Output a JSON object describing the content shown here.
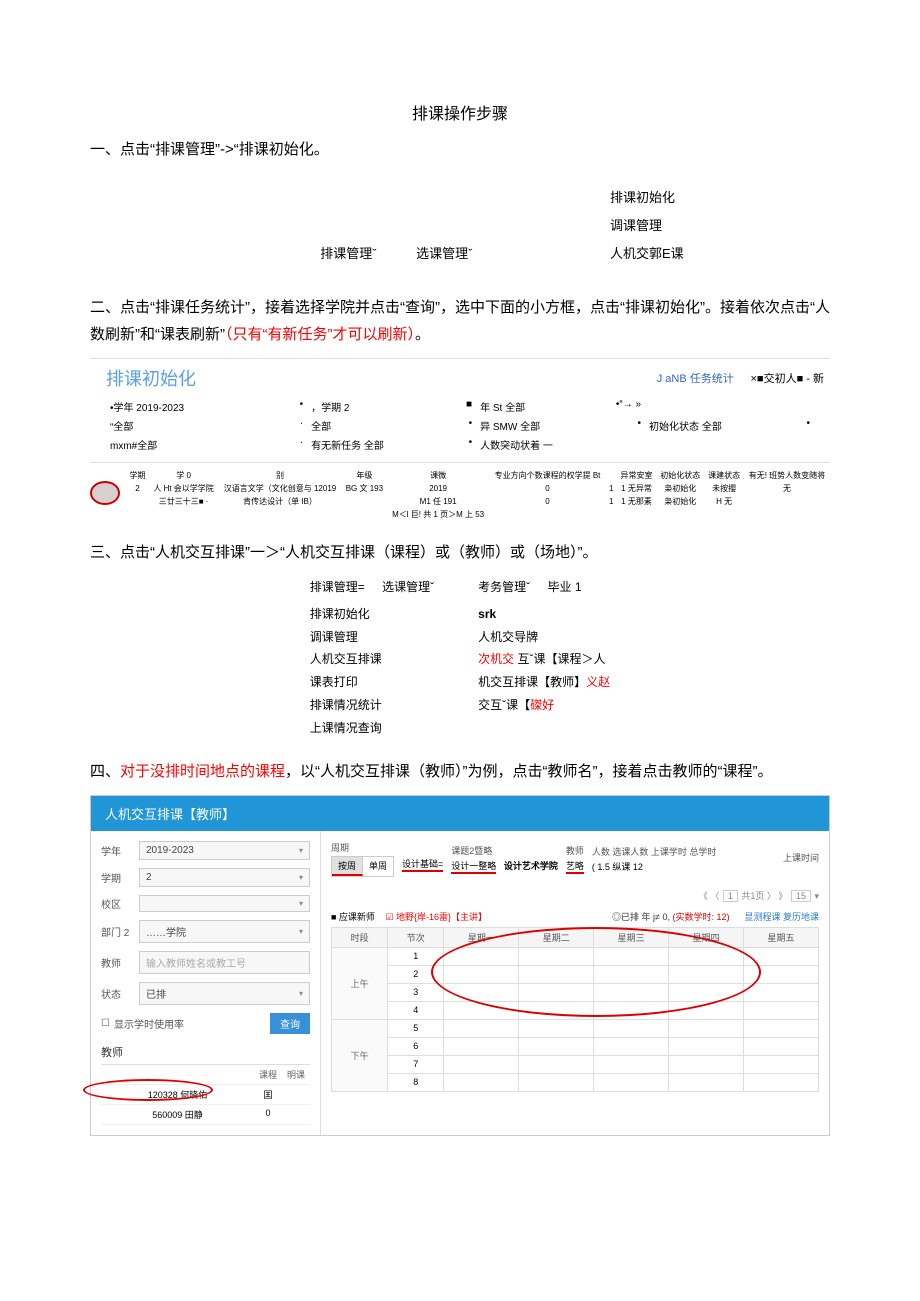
{
  "title": "排课操作步骤",
  "step1": "一、点击“排课管理”->“排课初始化。",
  "menu1": {
    "top1": "排课管理ˇ",
    "top2": "选课管理ˇ",
    "i1": "排课初始化",
    "i2": "调课管理",
    "i3": "人机交郭Ε课"
  },
  "step2a": "二、点击“排课任务统计”，接着选择学院并点击“查询”，选中下面的小方框，点击“排课初始化”。接着依次点击“人数刷新”和“课表刷新”",
  "step2b": "（只有“有新任务”才可以刷新）",
  "step2c": "。",
  "panel2": {
    "title": "排课初始化",
    "tab1": "J aNB 任务统计",
    "tab2": "×■交初人■ - 新",
    "r1c1l": "•学年 2019-2023",
    "r1c1r": "•",
    "r1c2l": "，学期 2",
    "r1c2r": "■",
    "r1c3l": "年 St 全部",
    "r1c3r": "•“→ »",
    "r1c4l": "",
    "r1c4r": "",
    "r2c1l": "“全部",
    "r2c1r": "·",
    "r2c2l": "全部",
    "r2c2r": "•",
    "r2c3l": "异 SMW 全部",
    "r2c3r": "•",
    "r2c4l": "初始化状态 全部",
    "r2c4r": "•",
    "r3c1l": "mxm#全部",
    "r3c1r": "·",
    "r3c2l": "有无新任务 全部",
    "r3c2r": "•",
    "r3c3l": "人数突动状着  一",
    "r3c3r": "",
    "r3c4l": "",
    "r3c4r": ""
  },
  "table1": {
    "headers": [
      "学期",
      "学 0",
      "别",
      "年级",
      "课微",
      "专业方向个数课程的权学提 Bt",
      "",
      "异常安室",
      "初始化状态",
      "课建状态",
      "有无! 班势人数变随将"
    ],
    "row1": [
      "2",
      "人 Ht 会以学学院",
      "汉语言文学（文化创意与 12019",
      "BG 文 193",
      "2019",
      "0",
      "1",
      "1 无异常",
      "枭初始化",
      "未按撄",
      "无"
    ],
    "row2": [
      "",
      "三廿三十三■ ·",
      "肯传达设计（单 IB）",
      "",
      "M1 任 191",
      "0",
      "1",
      "1 无那素",
      "枭初始化",
      "H 无",
      ""
    ],
    "row3": [
      "",
      "",
      "",
      "",
      "M＜l 巨! 共 1 页＞M 上 53",
      "",
      "",
      "",
      "",
      "",
      ""
    ]
  },
  "step3": "三、点击“人机交互排课”一＞“人机交互排课（课程）或（教师）或（场地）”。",
  "menu3": {
    "top": {
      "a": "排课管理=",
      "b": "选课管理ˇ",
      "c": "考务管理ˇ",
      "d": "毕业 1"
    },
    "l1": "排课初始化",
    "r1": "srk",
    "l2": "调课管理",
    "r2": "",
    "l3": "人机交互排课",
    "r3": "人机交导牌",
    "l4": "课表打印",
    "r4a": "次机交",
    "r4b": " 互ˇ课【课程＞人",
    "l5": "排课情况统计",
    "r5a": "机交互排课【教师】",
    "r5b": "义赵",
    "l6": "上课情况查询",
    "r6a": "交互ˇ课【",
    "r6b": "磔好"
  },
  "step4a": "四、",
  "step4b": "对于没排时间地点的课程",
  "step4c": "，以“人机交互排课（教师）”为例，点击“教师名”，接着点击教师的“课程”。",
  "panel4": {
    "header": "人机交互排课【教师】",
    "form": {
      "year_l": "学年",
      "year_v": "2019-2023",
      "term_l": "学期",
      "term_v": "2",
      "campus_l": "校区",
      "campus_v": "",
      "dept_l": "部门 2",
      "dept_v": "……学院",
      "teacher_l": "教师",
      "teacher_ph": "输入教师姓名或教工号",
      "status_l": "状态",
      "status_v": "已排",
      "checkbox": "显示学时使用率",
      "query": "查询"
    },
    "teacher_title": "教师",
    "teacher_head": {
      "a": "",
      "b": "课程",
      "c": "明课"
    },
    "teachers": [
      {
        "name": "120328 何晓佑",
        "a": "囯",
        "b": ""
      },
      {
        "name": "560009 田静",
        "a": "0",
        "b": ""
      }
    ],
    "right_top": {
      "c1h": "周期",
      "c1a": "按周",
      "c1b": "单周",
      "c2h": "",
      "c2a": "设计基础=",
      "c2b": "",
      "c3h": "课题2暨略",
      "c3a": "设计一整略",
      "c3b": "设计艺术学院",
      "c4h": "教师",
      "c4a": "艺略",
      "c5h": "人数 选课人数 上课学时 总学时",
      "c5a": "( 1.5 纵课    12",
      "c6h": "上课时间",
      "c6a": ""
    },
    "pager": {
      "a": "《 〈",
      "b": "1",
      "c": "共1页 〉 》",
      "d": "15",
      "e": "▾"
    },
    "sched_top": {
      "left1": "■ 应课新师",
      "left2": "☑ 地野{岸-16雷}【主讲】",
      "mid": "◎已排 年 j≠ 0, (实数学时: 12)",
      "right": "显测程课 复历地课"
    },
    "sched": {
      "h1": "时段",
      "h2": "节次",
      "d1": "星期一",
      "d2": "星期二",
      "d3": "星期三",
      "d4": "星期四",
      "d5": "星期五",
      "am": "上午",
      "pm": "下午",
      "p1": "1",
      "p2": "2",
      "p3": "3",
      "p4": "4",
      "p5": "5",
      "p6": "6",
      "p7": "7",
      "p8": "8"
    }
  }
}
